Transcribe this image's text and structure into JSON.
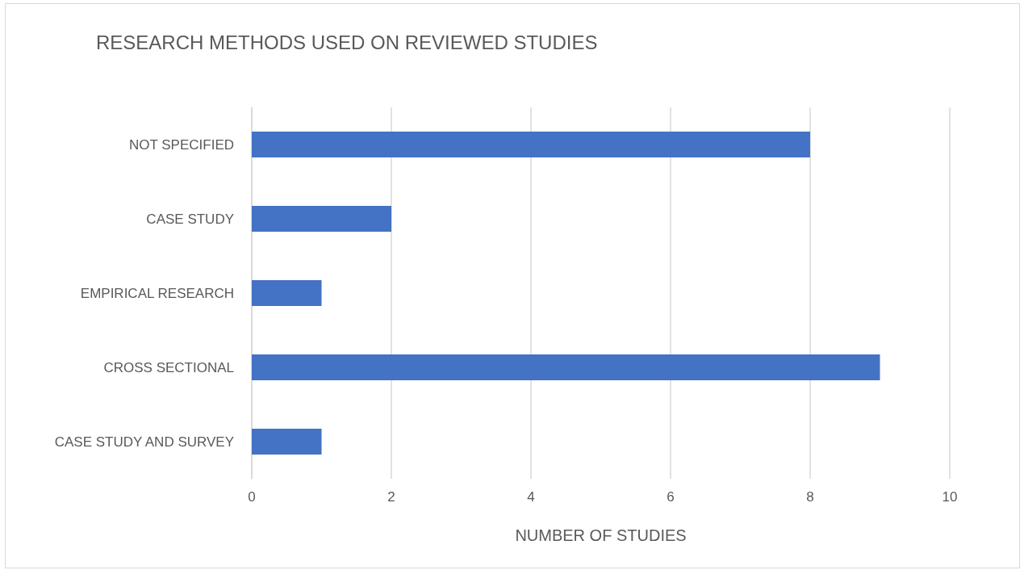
{
  "chart_data": {
    "type": "bar",
    "orientation": "horizontal",
    "title": "RESEARCH METHODS USED ON REVIEWED STUDIES",
    "xlabel": "NUMBER OF STUDIES",
    "categories": [
      "NOT SPECIFIED",
      "CASE STUDY",
      "EMPIRICAL RESEARCH",
      "CROSS SECTIONAL",
      "CASE STUDY AND SURVEY"
    ],
    "values": [
      8,
      2,
      1,
      9,
      1
    ],
    "color": "#4472c4",
    "xlim": [
      0,
      10
    ],
    "xticks": [
      0,
      2,
      4,
      6,
      8,
      10
    ],
    "grid": "x"
  }
}
